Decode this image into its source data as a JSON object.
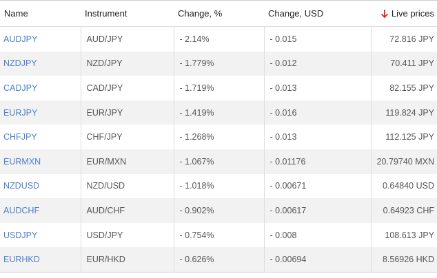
{
  "table": {
    "headers": [
      "Name",
      "Instrument",
      "Change, %",
      "Change, USD",
      "Live prices"
    ],
    "rows": [
      [
        "AUDJPY",
        "AUD/JPY",
        "- 2.14%",
        "- 0.015",
        "72.816 JPY"
      ],
      [
        "NZDJPY",
        "NZD/JPY",
        "- 1.779%",
        "- 0.012",
        "70.411 JPY"
      ],
      [
        "CADJPY",
        "CAD/JPY",
        "- 1.719%",
        "- 0.013",
        "82.155 JPY"
      ],
      [
        "EURJPY",
        "EUR/JPY",
        "- 1.419%",
        "- 0.016",
        "119.824 JPY"
      ],
      [
        "CHFJPY",
        "CHF/JPY",
        "- 1.268%",
        "- 0.013",
        "112.125 JPY"
      ],
      [
        "EURMXN",
        "EUR/MXN",
        "- 1.067%",
        "- 0.01176",
        "20.79740 MXN"
      ],
      [
        "NZDUSD",
        "NZD/USD",
        "- 1.018%",
        "- 0.00671",
        "0.64840 USD"
      ],
      [
        "AUDCHF",
        "AUD/CHF",
        "- 0.902%",
        "- 0.00617",
        "0.64923 CHF"
      ],
      [
        "USDJPY",
        "USD/JPY",
        "- 0.754%",
        "- 0.008",
        "108.613 JPY"
      ],
      [
        "EURHKD",
        "EUR/HKD",
        "- 0.626%",
        "- 0.00694",
        "8.56926 HKD"
      ]
    ]
  }
}
